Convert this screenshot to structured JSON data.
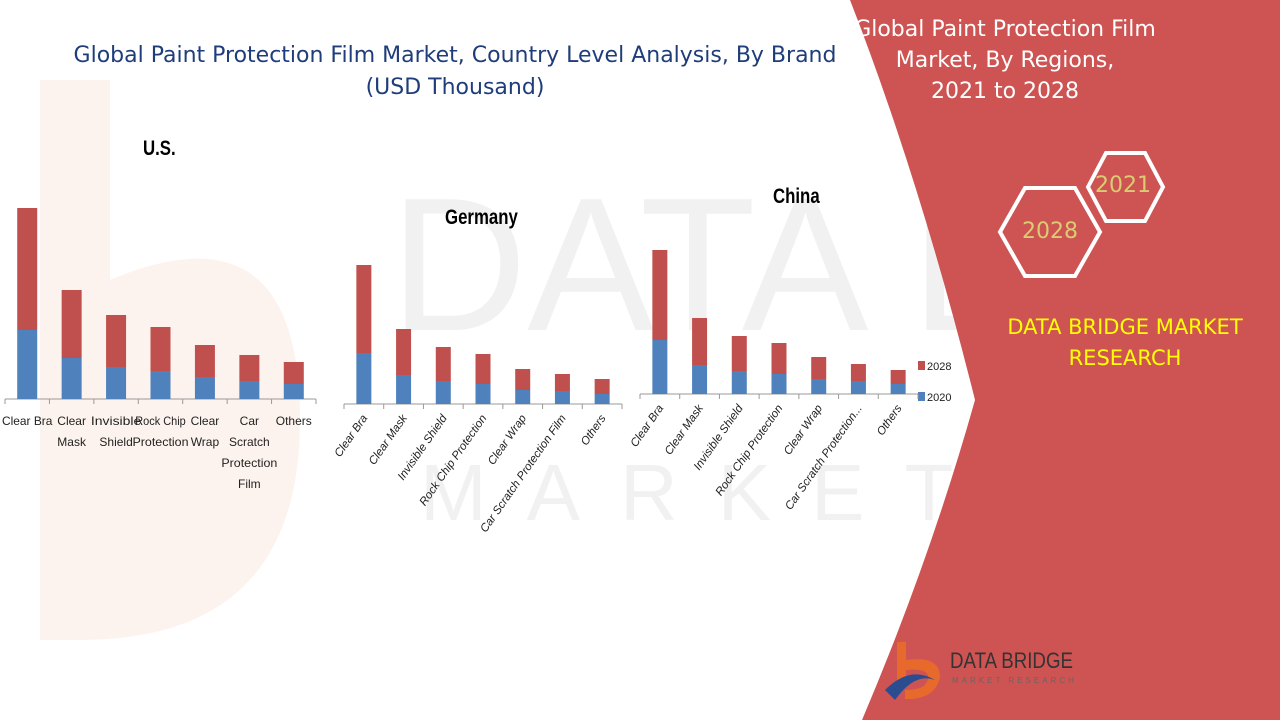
{
  "header": {
    "title_line1": "Global Paint Protection Film Market, Country Level Analysis, By Brand",
    "title_line2": "(USD Thousand)"
  },
  "side_panel": {
    "title_line1": "Global Paint Protection Film",
    "title_line2": "Market, By Regions,",
    "title_line3": "2021 to 2028",
    "hex_year_a": "2021",
    "hex_year_b": "2028",
    "brand_line1": "DATA BRIDGE MARKET",
    "brand_line2": "RESEARCH",
    "logo_text": "DATA BRIDGE",
    "logo_sub": "MARKET RESEARCH"
  },
  "colors": {
    "s2020": "#4f81bd",
    "s2028": "#c0504d",
    "panel": "#cd5452",
    "accent_yellow": "#ffff00",
    "hex_text": "#d9cc72"
  },
  "legend": {
    "item_2028": "2028",
    "item_2020": "2020"
  },
  "chart_data": [
    {
      "type": "bar",
      "stacked": true,
      "title": "U.S.",
      "categories": [
        "Clear Bra",
        "Clear Mask",
        "Invisible Shield",
        "Rock Chip Protection",
        "Clear Wrap",
        "Car Scratch Protection Film",
        "Others"
      ],
      "series": [
        {
          "name": "2020",
          "values": [
            69,
            41,
            32,
            28,
            22,
            18,
            15
          ]
        },
        {
          "name": "2028",
          "values": [
            122,
            68,
            52,
            44,
            32,
            26,
            22
          ]
        }
      ],
      "ylabel": "Relative value (no axis shown)",
      "label_style": "horizontal"
    },
    {
      "type": "bar",
      "stacked": true,
      "title": "Germany",
      "categories": [
        "Clear Bra",
        "Clear Mask",
        "Invisible Shield",
        "Rock Chip Protection",
        "Clear Wrap",
        "Car Scratch Protection Film",
        "Others"
      ],
      "series": [
        {
          "name": "2020",
          "values": [
            51,
            29,
            23,
            20,
            14,
            13,
            10
          ]
        },
        {
          "name": "2028",
          "values": [
            88,
            46,
            34,
            30,
            21,
            17,
            15
          ]
        }
      ],
      "ylabel": "Relative value (no axis shown)",
      "label_style": "rotated"
    },
    {
      "type": "bar",
      "stacked": true,
      "title": "China",
      "categories": [
        "Clear Bra",
        "Clear Mask",
        "Invisible Shield",
        "Rock Chip Protection",
        "Clear Wrap",
        "Car Scratch Protection...",
        "Others"
      ],
      "series": [
        {
          "name": "2020",
          "values": [
            54,
            29,
            23,
            20,
            15,
            13,
            10
          ]
        },
        {
          "name": "2028",
          "values": [
            90,
            47,
            35,
            31,
            22,
            17,
            14
          ]
        }
      ],
      "ylabel": "Relative value (no axis shown)",
      "label_style": "rotated",
      "legend": "right"
    }
  ]
}
